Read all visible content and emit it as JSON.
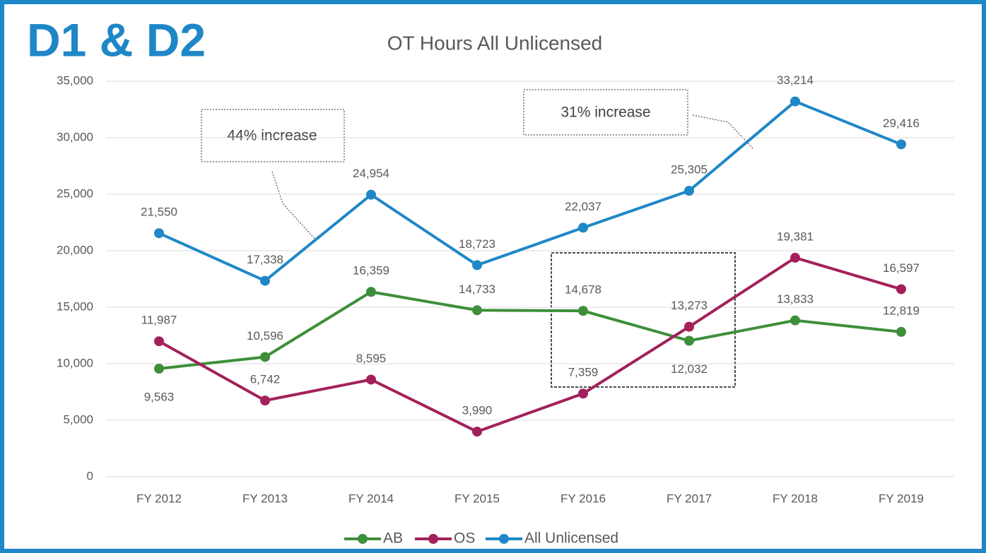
{
  "heading": "D1 & D2",
  "chart_data": {
    "type": "line",
    "title": "OT Hours All Unlicensed",
    "categories": [
      "FY 2012",
      "FY 2013",
      "FY 2014",
      "FY 2015",
      "FY 2016",
      "FY 2017",
      "FY 2018",
      "FY 2019"
    ],
    "series": [
      {
        "name": "AB",
        "color": "#3d8f3a",
        "values": [
          9563,
          10596,
          16359,
          14733,
          14678,
          12032,
          13833,
          12819
        ],
        "value_labels": [
          "9,563",
          "10,596",
          "16,359",
          "14,733",
          "14,678",
          "12,032",
          "13,833",
          "12,819"
        ]
      },
      {
        "name": "OS",
        "color": "#a3215b",
        "values": [
          11987,
          6742,
          8595,
          3990,
          7359,
          13273,
          19381,
          16597
        ],
        "value_labels": [
          "11,987",
          "6,742",
          "8,595",
          "3,990",
          "7,359",
          "13,273",
          "19,381",
          "16,597"
        ]
      },
      {
        "name": "All Unlicensed",
        "color": "#1f87c7",
        "values": [
          21550,
          17338,
          24954,
          18723,
          22037,
          25305,
          33214,
          29416
        ],
        "value_labels": [
          "21,550",
          "17,338",
          "24,954",
          "18,723",
          "22,037",
          "25,305",
          "33,214",
          "29,416"
        ]
      }
    ],
    "ylim": [
      0,
      35000
    ],
    "yticks": [
      0,
      {
        "value": 5000,
        "label": "5,000"
      },
      {
        "value": 10000,
        "label": "10,000"
      },
      {
        "value": 15000,
        "label": "15,000"
      },
      {
        "value": 20000,
        "label": "20,000"
      },
      {
        "value": 25000,
        "label": "25,000"
      },
      {
        "value": 30000,
        "label": "30,000"
      },
      {
        "value": 35000,
        "label": "35,000"
      }
    ],
    "grid": true,
    "legend": "bottom",
    "annotations": [
      "44% increase",
      "31% increase"
    ]
  }
}
